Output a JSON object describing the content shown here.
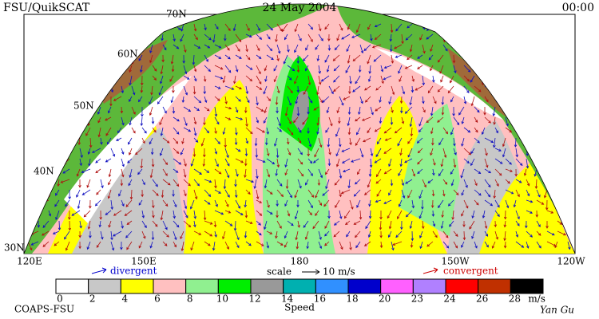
{
  "header": {
    "left": "FSU/QuikSCAT",
    "center": "24 May 2004",
    "right": "00:00"
  },
  "map": {
    "lat_labels": [
      "70N",
      "60N",
      "50N",
      "40N",
      "30N"
    ],
    "lon_labels": [
      "120E",
      "150E",
      "180",
      "150W",
      "120W"
    ]
  },
  "annotations": {
    "divergent": "divergent",
    "scale": "scale",
    "scale_value": "10 m/s",
    "convergent": "convergent"
  },
  "colorbar": {
    "title": "Speed",
    "unit": "m/s",
    "ticks": [
      0,
      2,
      4,
      6,
      8,
      10,
      12,
      14,
      16,
      18,
      20,
      23,
      24,
      26,
      28
    ],
    "colors": [
      "#ffffff",
      "#c8c8c8",
      "#ffff00",
      "#ffc0c0",
      "#90f090",
      "#00ee00",
      "#999999",
      "#00b0b0",
      "#3090ff",
      "#0000cc",
      "#ff60ff",
      "#b080ff",
      "#ff0000",
      "#c03000",
      "#000000"
    ]
  },
  "footer": {
    "left": "COAPS-FSU",
    "right": "Yan Gu"
  }
}
